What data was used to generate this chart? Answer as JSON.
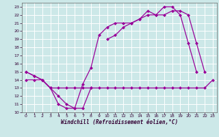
{
  "bg_color": "#cce8e8",
  "grid_color": "#ffffff",
  "line_color": "#990099",
  "xlabel": "Windchill (Refroidissement éolien,°C)",
  "xlim": [
    -0.5,
    23.5
  ],
  "ylim": [
    10,
    23.5
  ],
  "xticks": [
    0,
    1,
    2,
    3,
    4,
    5,
    6,
    7,
    8,
    9,
    10,
    11,
    12,
    13,
    14,
    15,
    16,
    17,
    18,
    19,
    20,
    21,
    22,
    23
  ],
  "yticks": [
    10,
    11,
    12,
    13,
    14,
    15,
    16,
    17,
    18,
    19,
    20,
    21,
    22,
    23
  ],
  "line1_y": [
    15,
    14.5,
    14,
    13,
    11,
    10.5,
    10.5,
    13.5,
    15.5,
    19.5,
    20.5,
    21,
    21,
    21,
    21.5,
    22.5,
    22,
    23,
    23,
    22,
    18.5,
    15,
    null,
    null
  ],
  "line2_y": [
    15,
    14.5,
    14,
    13,
    12,
    11,
    10.5,
    10.5,
    13,
    null,
    19,
    19.5,
    20.5,
    21,
    21.5,
    22,
    22,
    22,
    22.5,
    22.5,
    22,
    18.5,
    15,
    null
  ],
  "line3_y": [
    14,
    14,
    14,
    13,
    13,
    13,
    13,
    13,
    13,
    13,
    13,
    13,
    13,
    13,
    13,
    13,
    13,
    13,
    13,
    13,
    13,
    13,
    13,
    14
  ],
  "markersize": 2.5,
  "linewidth": 0.9
}
